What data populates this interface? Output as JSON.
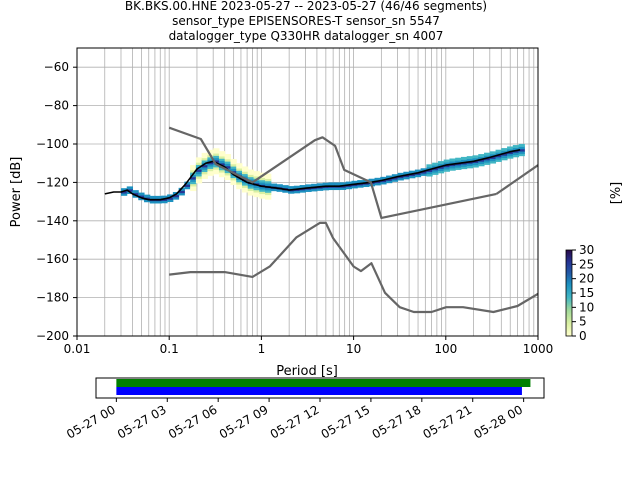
{
  "title_lines": [
    "BK.BKS.00.HNE   2023-05-27 -- 2023-05-27  (46/46 segments)",
    "sensor_type EPISENSORES-T sensor_sn 5547",
    "datalogger_type Q330HR datalogger_sn 4007"
  ],
  "chart_data": [
    {
      "type": "heatmap",
      "xlabel": "Period [s]",
      "ylabel": "Power [dB]",
      "xscale": "log",
      "xlim": [
        0.01,
        1000
      ],
      "ylim": [
        -200,
        -50
      ],
      "x_ticks": [
        "0.01",
        "0.1",
        "1",
        "10",
        "100",
        "1000"
      ],
      "y_ticks": [
        "−200",
        "−180",
        "−160",
        "−140",
        "−120",
        "−100",
        "−80",
        "−60"
      ],
      "grid": true,
      "colorbar": {
        "label": "[%]",
        "ticks": [
          "0",
          "5",
          "10",
          "15",
          "20",
          "25",
          "30"
        ],
        "range": [
          0,
          30
        ],
        "colors": [
          "#ffffcc",
          "#d9f0a3",
          "#a1d99b",
          "#41b6c4",
          "#1d91c0",
          "#225ea8",
          "#253494",
          "#2a0a48"
        ]
      },
      "series": [
        {
          "name": "",
          "kind": "mode",
          "color": "#000000",
          "x": [
            0.02,
            0.025,
            0.03,
            0.035,
            0.04,
            0.05,
            0.06,
            0.07,
            0.08,
            0.1,
            0.12,
            0.15,
            0.2,
            0.25,
            0.3,
            0.4,
            0.5,
            0.7,
            1,
            1.5,
            2,
            3,
            5,
            7,
            10,
            15,
            20,
            30,
            50,
            70,
            100,
            200,
            300,
            500,
            640
          ],
          "y": [
            -126,
            -125,
            -125,
            -124,
            -126,
            -128,
            -129,
            -129,
            -129,
            -128,
            -126,
            -121,
            -113,
            -110,
            -109,
            -112,
            -116,
            -120,
            -122,
            -123,
            -124,
            -123,
            -122,
            -122,
            -121,
            -120,
            -119,
            -117,
            -115,
            -113,
            -111,
            -109,
            -107,
            -104,
            -103
          ]
        },
        {
          "name": "",
          "kind": "high-noise-model",
          "color": "#666666",
          "x": [
            0.1,
            0.22,
            0.32,
            0.8,
            3.8,
            4.6,
            6.3,
            7.9,
            15.4,
            20,
            354.8
          ],
          "y": [
            -91.5,
            -97.4,
            -110.5,
            -120,
            -98,
            -96.5,
            -101,
            -113.5,
            -120,
            -138.5,
            -126
          ]
        },
        {
          "name": "",
          "kind": "high-noise-model-ext",
          "color": "#666666",
          "x": [
            354.8,
            1000
          ],
          "y": [
            -126,
            -111
          ]
        },
        {
          "name": "",
          "kind": "low-noise-model",
          "color": "#666666",
          "x": [
            0.1,
            0.17,
            0.4,
            0.8,
            1.24,
            2.4,
            4.3,
            5,
            6,
            10,
            12,
            15.6,
            21.9,
            31.6,
            45,
            70,
            101,
            154,
            328,
            600,
            1000
          ],
          "y": [
            -168,
            -166.7,
            -166.7,
            -169.2,
            -163.7,
            -148.6,
            -141.1,
            -141.1,
            -149,
            -163.8,
            -166.2,
            -162.1,
            -177.5,
            -185,
            -187.5,
            -187.5,
            -185,
            -185,
            -187.5,
            -184.4,
            -178
          ]
        }
      ]
    },
    {
      "type": "bar",
      "orientation": "horizontal-timeline",
      "x_tick_labels": [
        "05-27 00",
        "05-27 03",
        "05-27 06",
        "05-27 09",
        "05-27 12",
        "05-27 15",
        "05-27 18",
        "05-27 21",
        "05-28 00"
      ],
      "series": [
        {
          "name": "",
          "color": "#008000",
          "start_hours": 0,
          "end_hours": 24.4
        },
        {
          "name": "",
          "color": "#0000ff",
          "start_hours": 0,
          "end_hours": 23.9
        }
      ],
      "xlim_hours": [
        -1.2,
        25.2
      ]
    }
  ]
}
